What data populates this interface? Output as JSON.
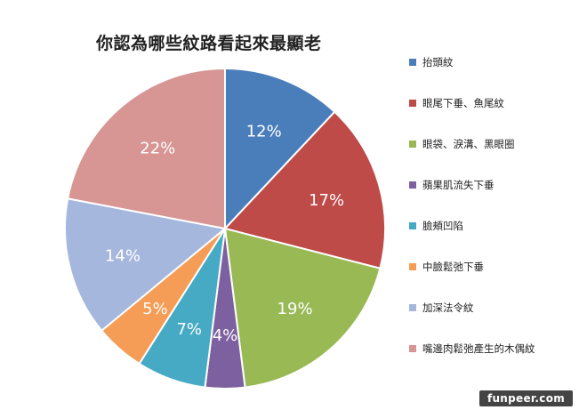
{
  "chart_data": {
    "type": "pie",
    "title": "你認為哪些紋路看起來最顯老",
    "legend_position": "right",
    "slices": [
      {
        "label": "抬頭紋",
        "value": 12,
        "display": "12%",
        "color": "#4a7ebb"
      },
      {
        "label": "眼尾下垂、魚尾紋",
        "value": 17,
        "display": "17%",
        "color": "#be4b48"
      },
      {
        "label": "眼袋、淚溝、黑眼圈",
        "value": 19,
        "display": "19%",
        "color": "#98b954"
      },
      {
        "label": "蘋果肌流失下垂",
        "value": 4,
        "display": "4%",
        "color": "#7d60a0"
      },
      {
        "label": "臉頰凹陷",
        "value": 7,
        "display": "7%",
        "color": "#46aac5"
      },
      {
        "label": "中臉鬆弛下垂",
        "value": 5,
        "display": "5%",
        "color": "#f59d56"
      },
      {
        "label": "加深法令紋",
        "value": 14,
        "display": "14%",
        "color": "#a5b7dc"
      },
      {
        "label": "嘴邊肉鬆弛產生的木偶紋",
        "value": 22,
        "display": "22%",
        "color": "#d79594"
      }
    ]
  },
  "watermark": "funpeer.com"
}
